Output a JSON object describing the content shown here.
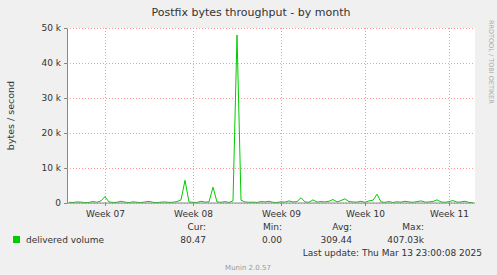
{
  "chart_data": {
    "type": "line",
    "title": "Postfix bytes throughput - by month",
    "y_label": "bytes / second",
    "categories": [
      null,
      null,
      null,
      null,
      null,
      null,
      null,
      null,
      null,
      "Week 07",
      null,
      null,
      null,
      null,
      null,
      null,
      null,
      null,
      null,
      null,
      null,
      null,
      null,
      null,
      null,
      null,
      null,
      null,
      null,
      null,
      null,
      "Week 08",
      null,
      null,
      null,
      null,
      null,
      null,
      null,
      null,
      null,
      null,
      null,
      null,
      null,
      null,
      null,
      null,
      null,
      null,
      null,
      null,
      null,
      "Week 09",
      null,
      null,
      null,
      null,
      null,
      null,
      null,
      null,
      null,
      null,
      null,
      null,
      null,
      null,
      null,
      null,
      null,
      null,
      null,
      null,
      "Week 10",
      null,
      null,
      null,
      null,
      null,
      null,
      null,
      null,
      null,
      null,
      null,
      null,
      null,
      null,
      null,
      null,
      null,
      null,
      null,
      null,
      "Week 11",
      null,
      null,
      null,
      null,
      null,
      null
    ],
    "series": [
      {
        "name": "delivered volume",
        "color": "#00cc00",
        "values": [
          200,
          150,
          300,
          250,
          100,
          180,
          400,
          220,
          600,
          1800,
          300,
          150,
          200,
          500,
          250,
          100,
          350,
          200,
          150,
          300,
          450,
          200,
          120,
          250,
          300,
          180,
          220,
          400,
          900,
          6500,
          300,
          200,
          150,
          500,
          250,
          350,
          4500,
          300,
          200,
          400,
          150,
          600,
          48000,
          800,
          300,
          200,
          250,
          150,
          400,
          300,
          500,
          200,
          150,
          350,
          250,
          600,
          300,
          400,
          1500,
          300,
          200,
          900,
          250,
          400,
          300,
          500,
          1000,
          300,
          700,
          1200,
          400,
          300,
          250,
          500,
          200,
          600,
          800,
          2500,
          300,
          200,
          400,
          150,
          350,
          250,
          500,
          300,
          200,
          400,
          600,
          250,
          300,
          450,
          900,
          300,
          200,
          400,
          700,
          250,
          300,
          500,
          150,
          80
        ]
      }
    ],
    "ylim": [
      0,
      50000
    ],
    "yticks": [
      0,
      {
        "value": 10000,
        "label": "10 k"
      },
      {
        "value": 20000,
        "label": "20 k"
      },
      {
        "value": 30000,
        "label": "30 k"
      },
      {
        "value": 40000,
        "label": "40 k"
      },
      {
        "value": 50000,
        "label": "50 k"
      }
    ],
    "grid": true,
    "legend": "bottom",
    "stats": {
      "headers": [
        "Cur:",
        "Min:",
        "Avg:",
        "Max:"
      ],
      "values": [
        "80.47",
        "0.00",
        "309.44",
        "407.03k"
      ]
    },
    "last_update": "Last update: Thu Mar 13 23:00:08 2025",
    "footer": "Munin 2.0.57",
    "watermark": "RRDTOOL / TOBI OETIKER"
  }
}
